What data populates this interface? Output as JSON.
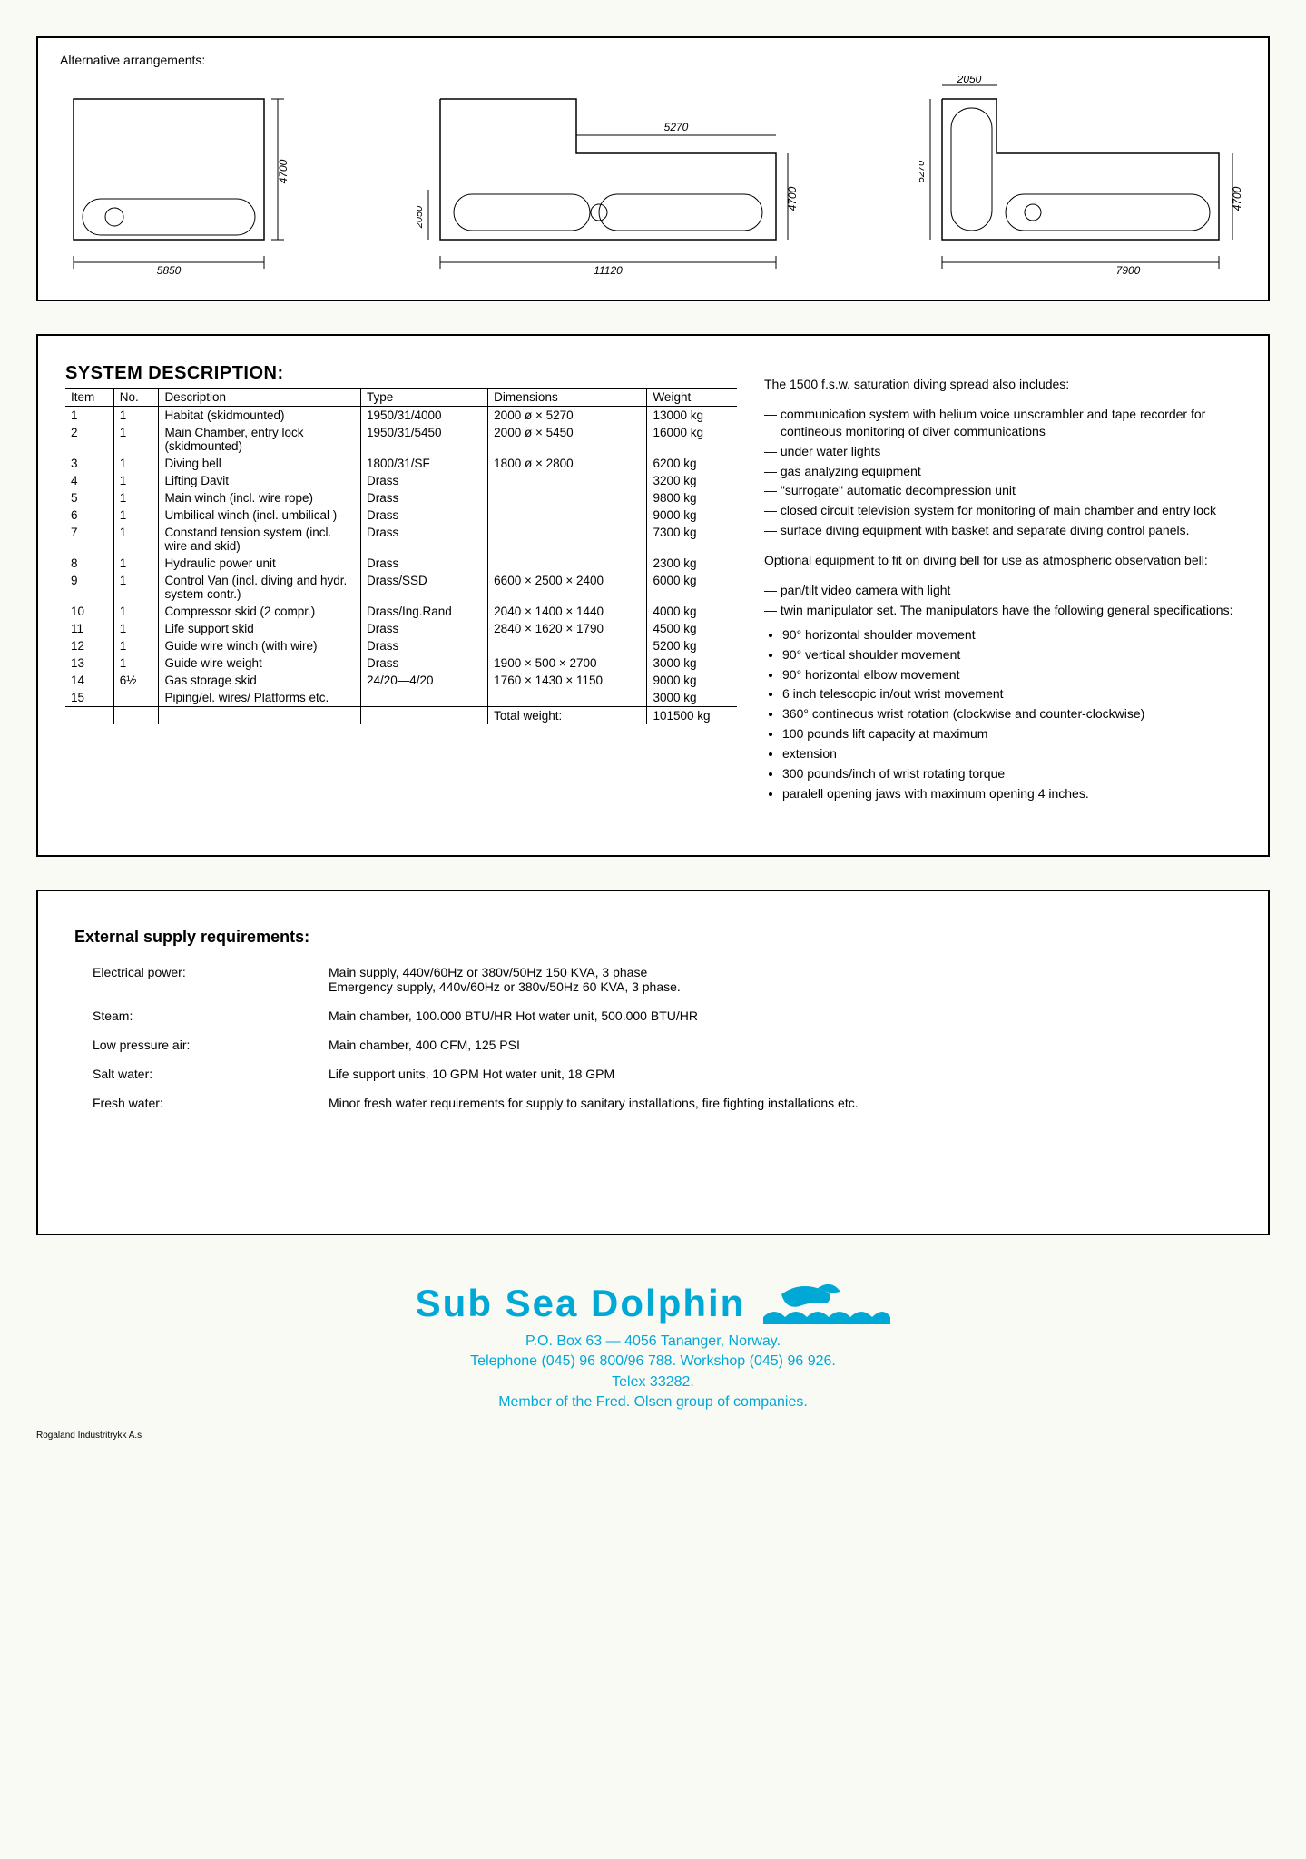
{
  "alternative_label": "Alternative arrangements:",
  "diagrams": [
    {
      "width_label": "5850",
      "height_label": "4700"
    },
    {
      "width_label": "11120",
      "height_label": "4700",
      "upper_label": "5270",
      "lock_h": "2050"
    },
    {
      "width_label": "7900",
      "height_label": "4700",
      "top_label": "2050",
      "side_label": "5270"
    }
  ],
  "sysdesc_title": "SYSTEM DESCRIPTION:",
  "columns": {
    "item": "Item",
    "no": "No.",
    "desc": "Description",
    "type": "Type",
    "dim": "Dimensions",
    "wt": "Weight"
  },
  "rows": [
    {
      "item": "1",
      "no": "1",
      "desc": "Habitat (skidmounted)",
      "type": "1950/31/4000",
      "dim": "2000 ø × 5270",
      "wt": "13000 kg"
    },
    {
      "item": "2",
      "no": "1",
      "desc": "Main Chamber, entry lock (skidmounted)",
      "type": "1950/31/5450",
      "dim": "2000 ø × 5450",
      "wt": "16000 kg"
    },
    {
      "item": "3",
      "no": "1",
      "desc": "Diving bell",
      "type": "1800/31/SF",
      "dim": "1800 ø × 2800",
      "wt": "6200 kg"
    },
    {
      "item": "4",
      "no": "1",
      "desc": "Lifting Davit",
      "type": "Drass",
      "dim": "",
      "wt": "3200 kg"
    },
    {
      "item": "5",
      "no": "1",
      "desc": "Main winch (incl. wire rope)",
      "type": "Drass",
      "dim": "",
      "wt": "9800 kg"
    },
    {
      "item": "6",
      "no": "1",
      "desc": "Umbilical winch (incl. umbilical )",
      "type": "Drass",
      "dim": "",
      "wt": "9000 kg"
    },
    {
      "item": "7",
      "no": "1",
      "desc": "Constand tension system (incl. wire and skid)",
      "type": "Drass",
      "dim": "",
      "wt": "7300 kg"
    },
    {
      "item": "8",
      "no": "1",
      "desc": "Hydraulic power unit",
      "type": "Drass",
      "dim": "",
      "wt": "2300 kg"
    },
    {
      "item": "9",
      "no": "1",
      "desc": "Control Van (incl. diving and hydr. system contr.)",
      "type": "Drass/SSD",
      "dim": "6600 × 2500 × 2400",
      "wt": "6000 kg"
    },
    {
      "item": "10",
      "no": "1",
      "desc": "Compressor skid (2 compr.)",
      "type": "Drass/Ing.Rand",
      "dim": "2040 × 1400 × 1440",
      "wt": "4000 kg"
    },
    {
      "item": "11",
      "no": "1",
      "desc": "Life support skid",
      "type": "Drass",
      "dim": "2840 × 1620 × 1790",
      "wt": "4500 kg"
    },
    {
      "item": "12",
      "no": "1",
      "desc": "Guide wire winch (with wire)",
      "type": "Drass",
      "dim": "",
      "wt": "5200 kg"
    },
    {
      "item": "13",
      "no": "1",
      "desc": "Guide wire weight",
      "type": "Drass",
      "dim": "1900 ×   500 × 2700",
      "wt": "3000 kg"
    },
    {
      "item": "14",
      "no": "6½",
      "desc": "Gas storage skid",
      "type": "24/20—4/20",
      "dim": "1760 × 1430 × 1150",
      "wt": "9000 kg"
    },
    {
      "item": "15",
      "no": "",
      "desc": "Piping/el. wires/ Platforms etc.",
      "type": "",
      "dim": "",
      "wt": "3000 kg"
    }
  ],
  "total_label": "Total weight:",
  "total_value": "101500 kg",
  "right": {
    "intro": "The 1500 f.s.w. saturation diving spread also includes:",
    "dash": [
      "communication system with helium voice unscrambler and tape recorder for contineous monitoring of diver communications",
      "under water lights",
      "gas analyzing equipment",
      "\"surrogate\" automatic decompression unit",
      "closed circuit television system for monitoring of main chamber and entry lock",
      "surface diving equipment with basket and separate diving control panels."
    ],
    "optional": "Optional equipment to fit on diving bell for use as atmospheric observation bell:",
    "dash2": [
      "pan/tilt video camera with light",
      "twin manipulator set. The manipulators have the following general specifications:"
    ],
    "bullets": [
      "90° horizontal shoulder movement",
      "90° vertical shoulder movement",
      "90° horizontal elbow movement",
      "6 inch telescopic in/out wrist movement",
      "360° contineous wrist rotation (clockwise and counter-clockwise)",
      "100 pounds lift capacity at maximum",
      "extension",
      "300 pounds/inch of wrist rotating torque",
      "paralell opening jaws with maximum opening 4 inches."
    ]
  },
  "ext_title": "External supply requirements:",
  "ext": [
    {
      "label": "Electrical power:",
      "val": "Main supply, 440v/60Hz or 380v/50Hz  150 KVA, 3 phase\nEmergency supply, 440v/60Hz or 380v/50Hz  60 KVA, 3 phase."
    },
    {
      "label": "Steam:",
      "val": "Main chamber, 100.000 BTU/HR  Hot water unit, 500.000 BTU/HR"
    },
    {
      "label": "Low pressure air:",
      "val": "Main chamber, 400 CFM, 125 PSI"
    },
    {
      "label": "Salt water:",
      "val": "Life support units, 10 GPM   Hot water unit, 18 GPM"
    },
    {
      "label": "Fresh water:",
      "val": "Minor fresh water requirements for supply to sanitary installations, fire fighting installations etc."
    }
  ],
  "footer": {
    "brand": "Sub Sea Dolphin",
    "lines": [
      "P.O. Box 63 — 4056 Tananger, Norway.",
      "Telephone (045) 96 800/96 788. Workshop (045) 96 926.",
      "Telex 33282.",
      "Member of the Fred. Olsen group of companies."
    ]
  },
  "printer": "Rogaland Industritrykk A.s",
  "colors": {
    "brand": "#00a8d6"
  }
}
